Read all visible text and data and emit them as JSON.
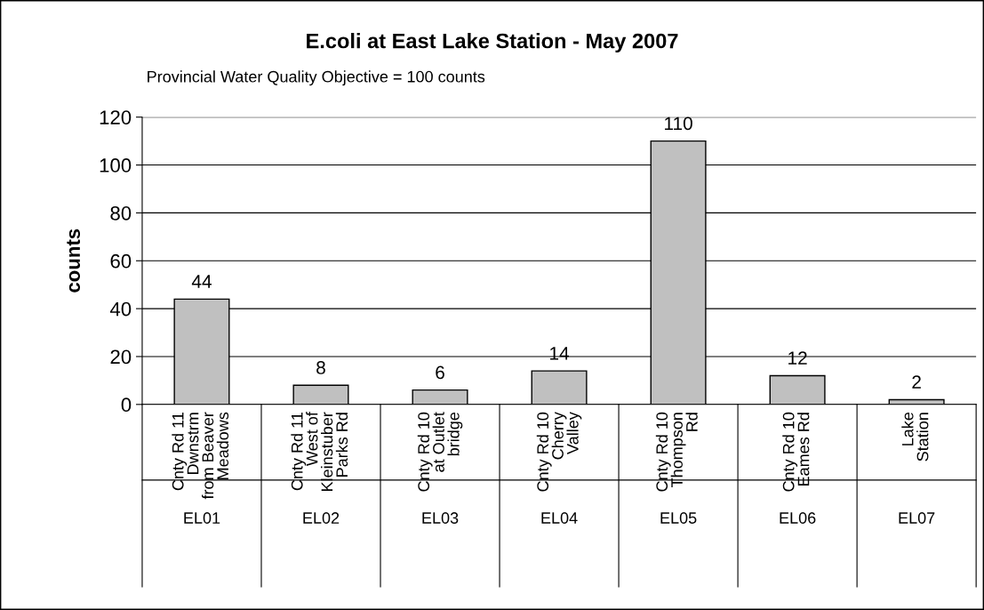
{
  "chart_data": {
    "type": "bar",
    "title": "E.coli at East Lake Station - May 2007",
    "ylabel": "counts",
    "categories": [
      "Cnty Rd 11\nDwnstrm\nfrom Beaver\nMeadows",
      "Cnty Rd 11\nWest of\nKleinstuber\nParks Rd",
      "Cnty Rd 10\nat Outlet\nbridge",
      "Cnty Rd 10\nCherry\nValley",
      "Cnty Rd 10\nThompson\nRd",
      "Cnty Rd 10\nEames Rd",
      "Lake\nStation"
    ],
    "values": [
      44,
      8,
      6,
      14,
      110,
      12,
      2
    ],
    "color": "#c0c0c0",
    "ylim": [
      0,
      120
    ],
    "yticks": [
      0,
      20,
      40,
      60,
      80,
      100,
      120
    ],
    "grid": "y",
    "data_labels": true,
    "annotations": [
      "Provincial Water Quality Objective = 100 counts",
      "EL01",
      "EL02",
      "EL03",
      "EL04",
      "EL05",
      "EL06",
      "EL07"
    ]
  }
}
